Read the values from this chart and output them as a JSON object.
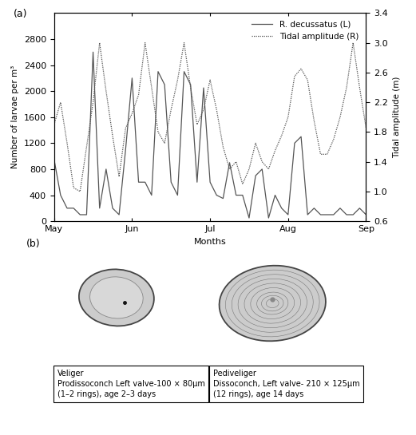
{
  "title_a": "(a)",
  "title_b": "(b)",
  "xlabel": "Months",
  "ylabel_left": "Number of larvae per m³",
  "ylabel_right": "Tidal amplitude (m)",
  "legend_larvae": "R. decussatus (L)",
  "legend_tidal": "Tidal amplitude (R)",
  "ylim_left": [
    0,
    3200
  ],
  "ylim_right": [
    0.6,
    3.4
  ],
  "yticks_left": [
    0,
    400,
    800,
    1200,
    1600,
    2000,
    2400,
    2800
  ],
  "yticks_right": [
    0.6,
    1.0,
    1.4,
    1.8,
    2.2,
    2.6,
    3.0,
    3.4
  ],
  "xtick_labels": [
    "May",
    "Jun",
    "Jul",
    "Aug",
    "Sep"
  ],
  "xtick_positions": [
    0,
    12,
    24,
    36,
    48
  ],
  "xlim": [
    0,
    48
  ],
  "larvae_x": [
    0,
    1,
    2,
    3,
    4,
    5,
    6,
    7,
    8,
    9,
    10,
    11,
    12,
    13,
    14,
    15,
    16,
    17,
    18,
    19,
    20,
    21,
    22,
    23,
    24,
    25,
    26,
    27,
    28,
    29,
    30,
    31,
    32,
    33,
    34,
    35,
    36,
    37,
    38,
    39,
    40,
    41,
    42,
    43,
    44,
    45,
    46,
    47,
    48
  ],
  "larvae_y": [
    950,
    400,
    200,
    200,
    100,
    100,
    2600,
    200,
    800,
    200,
    100,
    1100,
    2200,
    600,
    600,
    400,
    2300,
    2100,
    600,
    400,
    2300,
    2100,
    600,
    2050,
    600,
    400,
    350,
    900,
    400,
    400,
    50,
    700,
    800,
    50,
    400,
    200,
    100,
    1200,
    1300,
    100,
    200,
    100,
    100,
    100,
    200,
    100,
    100,
    200,
    100
  ],
  "tidal_x": [
    0,
    1,
    2,
    3,
    4,
    5,
    6,
    7,
    8,
    9,
    10,
    11,
    12,
    13,
    14,
    15,
    16,
    17,
    18,
    19,
    20,
    21,
    22,
    23,
    24,
    25,
    26,
    27,
    28,
    29,
    30,
    31,
    32,
    33,
    34,
    35,
    36,
    37,
    38,
    39,
    40,
    41,
    42,
    43,
    44,
    45,
    46,
    47,
    48
  ],
  "tidal_y": [
    1.9,
    2.2,
    1.65,
    1.05,
    1.0,
    1.6,
    2.2,
    3.0,
    2.35,
    1.75,
    1.2,
    1.85,
    2.05,
    2.3,
    3.0,
    2.4,
    1.8,
    1.65,
    2.1,
    2.5,
    3.0,
    2.4,
    1.9,
    2.1,
    2.5,
    2.1,
    1.6,
    1.3,
    1.4,
    1.1,
    1.3,
    1.65,
    1.4,
    1.3,
    1.55,
    1.75,
    2.0,
    2.55,
    2.65,
    2.5,
    1.95,
    1.5,
    1.5,
    1.7,
    2.0,
    2.4,
    3.0,
    2.4,
    1.85
  ],
  "box1_title": "Veliger",
  "box1_line2": "Prodissoconch Left valve-100 × 80µm",
  "box1_line3": "(1–2 rings), age 2–3 days",
  "box2_title": "Pediveliger",
  "box2_line2": "Dissoconch, Left valve- 210 × 125µm",
  "box2_line3": "(12 rings), age 14 days",
  "line_color": "#555555",
  "bg_color": "#ffffff"
}
